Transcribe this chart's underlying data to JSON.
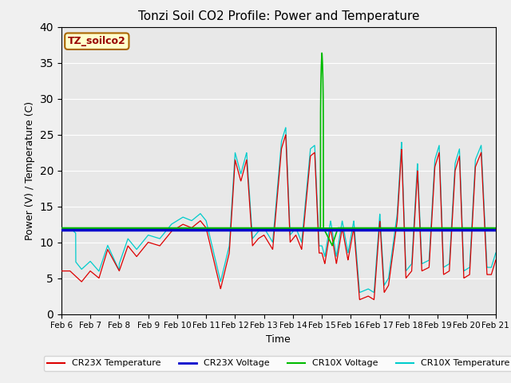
{
  "title": "Tonzi Soil CO2 Profile: Power and Temperature",
  "xlabel": "Time",
  "ylabel": "Power (V) / Temperature (C)",
  "ylim": [
    0,
    40
  ],
  "xlim": [
    0,
    15
  ],
  "xtick_labels": [
    "Feb 6",
    "Feb 7",
    "Feb 8",
    "Feb 9",
    "Feb 10",
    "Feb 11",
    "Feb 12",
    "Feb 13",
    "Feb 14",
    "Feb 15",
    "Feb 16",
    "Feb 17",
    "Feb 18",
    "Feb 19",
    "Feb 20",
    "Feb 21"
  ],
  "xtick_positions": [
    0,
    1,
    2,
    3,
    4,
    5,
    6,
    7,
    8,
    9,
    10,
    11,
    12,
    13,
    14,
    15
  ],
  "cr23x_voltage_value": 11.7,
  "cr10x_voltage_value": 12.0,
  "annotation_label": "TZ_soilco2",
  "annotation_bg": "#ffffcc",
  "annotation_border": "#aa6600",
  "annotation_text_color": "#990000",
  "plot_bg": "#e8e8e8",
  "fig_bg": "#f0f0f0",
  "cr23x_temp_color": "#dd0000",
  "cr23x_voltage_color": "#0000cc",
  "cr10x_voltage_color": "#00bb00",
  "cr10x_temp_color": "#00cccc",
  "title_fontsize": 11,
  "legend_entries": [
    "CR23X Temperature",
    "CR23X Voltage",
    "CR10X Voltage",
    "CR10X Temperature"
  ]
}
